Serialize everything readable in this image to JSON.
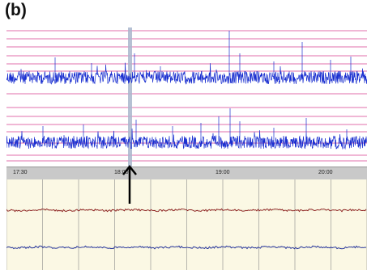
{
  "panel_label": "(b)",
  "overview": {
    "gridline_color": "#d63f8f",
    "signal_color": "#1a2fd0",
    "cursor_color": "#a9b6cc"
  },
  "time_axis": {
    "ticks": [
      "17:30",
      "18:00",
      "19:00",
      "20:00"
    ]
  },
  "detail": {
    "background": "#fbf8e4",
    "grid_color": "#8a8a8a",
    "trace_top_color": "#8a1a1a",
    "trace_bottom_color": "#1a2a9a"
  },
  "marker": {
    "icon": "up-arrow-icon"
  }
}
